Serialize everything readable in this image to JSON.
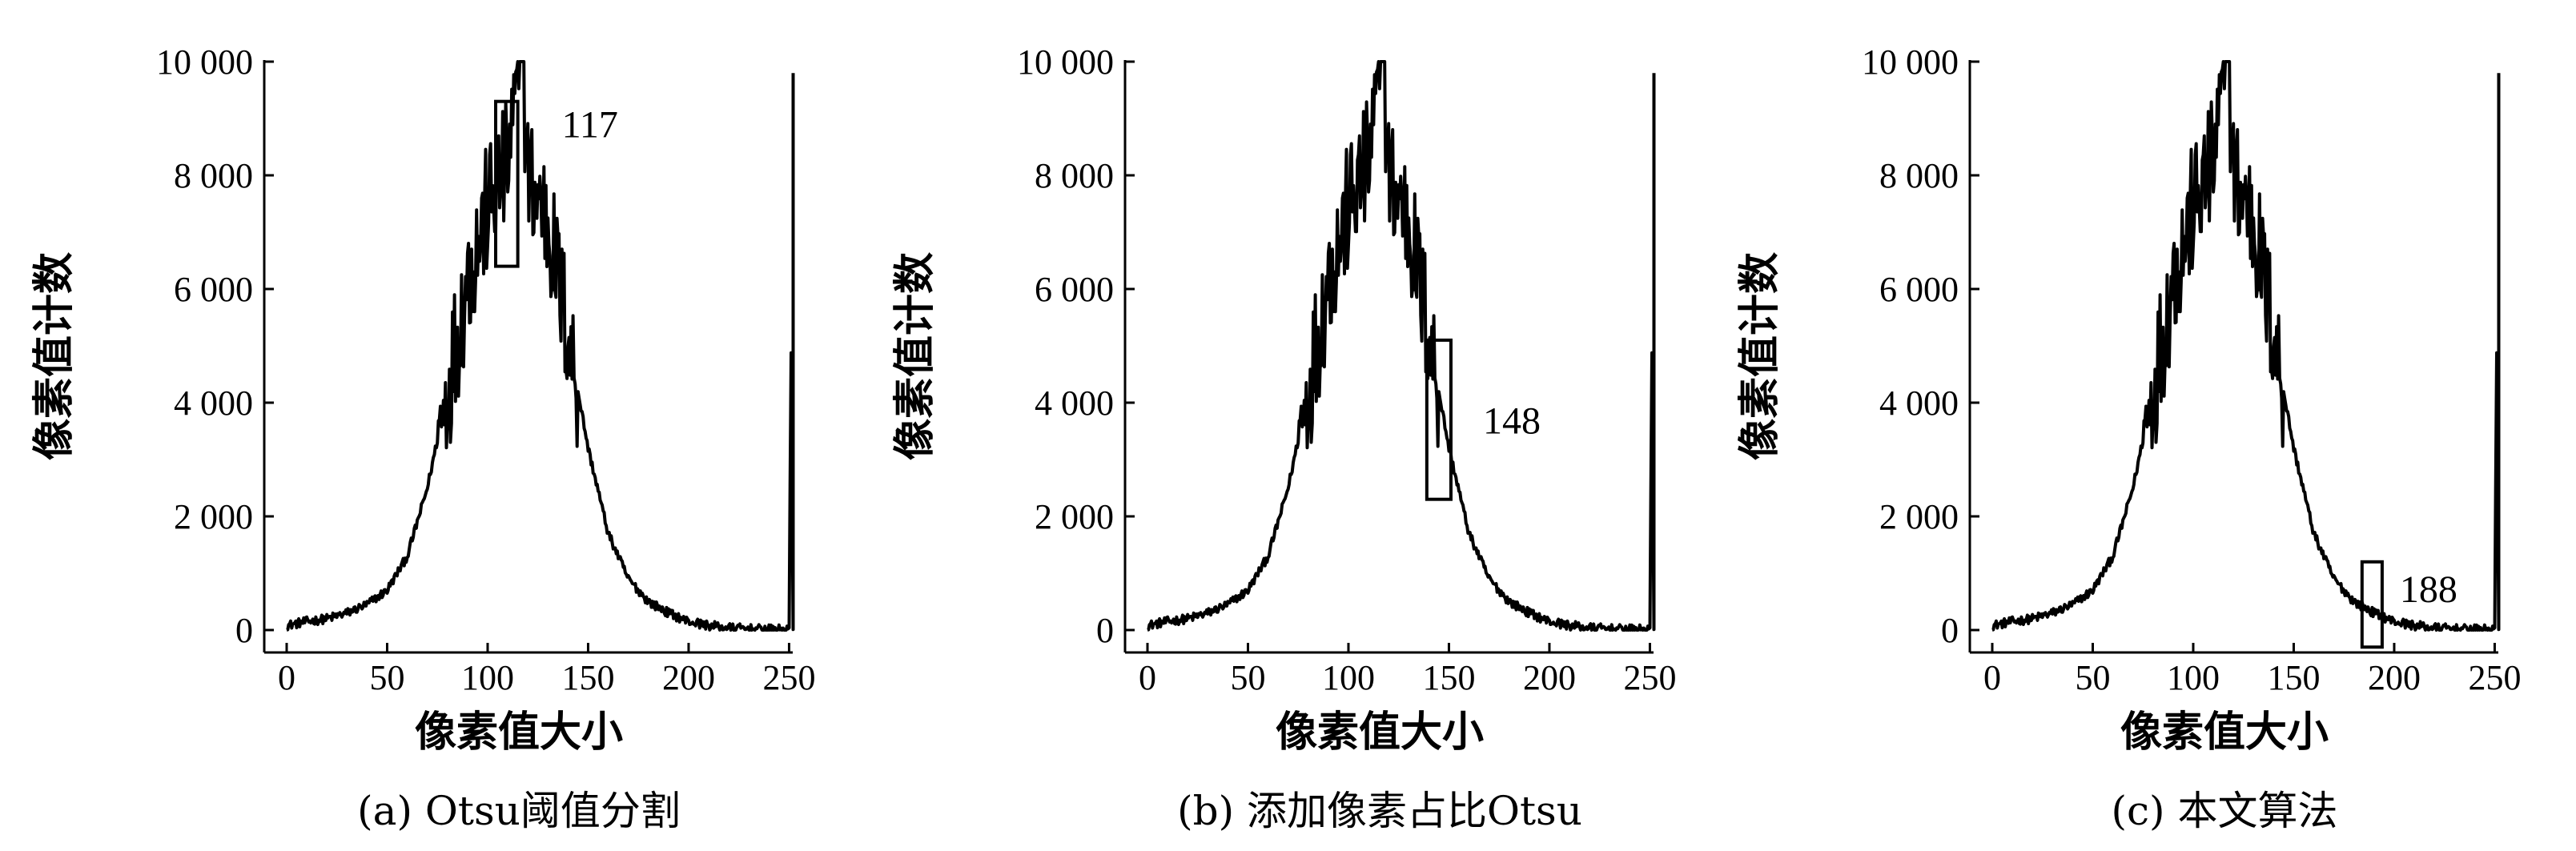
{
  "chart_data": [
    {
      "type": "histogram",
      "caption": "(a) Otsu阈值分割",
      "xlabel": "像素值大小",
      "ylabel": "像素值计数",
      "xlim": [
        0,
        255
      ],
      "ylim": [
        0,
        10000
      ],
      "x_ticks": [
        0,
        50,
        100,
        150,
        200,
        250
      ],
      "x_tick_labels": [
        "0",
        "50",
        "100",
        "150",
        "200",
        "250"
      ],
      "y_ticks": [
        0,
        2000,
        4000,
        6000,
        8000,
        10000
      ],
      "y_tick_labels": [
        "0",
        "2 000",
        "4 000",
        "6 000",
        "8 000",
        "10 000"
      ],
      "threshold": 117,
      "threshold_label": "117",
      "threshold_box": {
        "x_range": [
          104,
          115
        ],
        "y_range": [
          6400,
          9300
        ]
      },
      "x": [
        0,
        10,
        20,
        30,
        40,
        50,
        60,
        70,
        80,
        90,
        100,
        110,
        117,
        120,
        130,
        140,
        150,
        160,
        170,
        180,
        190,
        200,
        210,
        220,
        230,
        240,
        250,
        252,
        253
      ],
      "values": [
        80,
        150,
        200,
        300,
        450,
        700,
        1300,
        2500,
        4200,
        6200,
        7400,
        8200,
        10000,
        8000,
        7200,
        5200,
        3200,
        1700,
        900,
        500,
        300,
        150,
        80,
        40,
        20,
        10,
        10,
        9800,
        9800
      ]
    },
    {
      "type": "histogram",
      "caption": "(b) 添加像素占比Otsu",
      "xlabel": "像素值大小",
      "ylabel": "像素值计数",
      "xlim": [
        0,
        255
      ],
      "ylim": [
        0,
        10000
      ],
      "x_ticks": [
        0,
        50,
        100,
        150,
        200,
        250
      ],
      "x_tick_labels": [
        "0",
        "50",
        "100",
        "150",
        "200",
        "250"
      ],
      "y_ticks": [
        0,
        2000,
        4000,
        6000,
        8000,
        10000
      ],
      "y_tick_labels": [
        "0",
        "2 000",
        "4 000",
        "6 000",
        "8 000",
        "10 000"
      ],
      "threshold": 148,
      "threshold_label": "148",
      "threshold_box": {
        "x_range": [
          139,
          151
        ],
        "y_range": [
          2300,
          5100
        ]
      },
      "x": [
        0,
        10,
        20,
        30,
        40,
        50,
        60,
        70,
        80,
        90,
        100,
        110,
        117,
        120,
        130,
        140,
        150,
        160,
        170,
        180,
        190,
        200,
        210,
        220,
        230,
        240,
        250,
        252,
        253
      ],
      "values": [
        80,
        150,
        200,
        300,
        450,
        700,
        1300,
        2500,
        4200,
        6200,
        7400,
        8200,
        10000,
        8000,
        7200,
        5200,
        3200,
        1700,
        900,
        500,
        300,
        150,
        80,
        40,
        20,
        10,
        10,
        9800,
        9800
      ]
    },
    {
      "type": "histogram",
      "caption": "(c)  本文算法",
      "xlabel": "像素值大小",
      "ylabel": "像素值计数",
      "xlim": [
        0,
        255
      ],
      "ylim": [
        0,
        10000
      ],
      "x_ticks": [
        0,
        50,
        100,
        150,
        200,
        250
      ],
      "x_tick_labels": [
        "0",
        "50",
        "100",
        "150",
        "200",
        "250"
      ],
      "y_ticks": [
        0,
        2000,
        4000,
        6000,
        8000,
        10000
      ],
      "y_tick_labels": [
        "0",
        "2 000",
        "4 000",
        "6 000",
        "8 000",
        "10 000"
      ],
      "threshold": 188,
      "threshold_label": "188",
      "threshold_box": {
        "x_range": [
          184,
          194
        ],
        "y_range": [
          -300,
          1200
        ]
      },
      "x": [
        0,
        10,
        20,
        30,
        40,
        50,
        60,
        70,
        80,
        90,
        100,
        110,
        117,
        120,
        130,
        140,
        150,
        160,
        170,
        180,
        190,
        200,
        210,
        220,
        230,
        240,
        250,
        252,
        253
      ],
      "values": [
        80,
        150,
        200,
        300,
        450,
        700,
        1300,
        2500,
        4200,
        6200,
        7400,
        8200,
        10000,
        8000,
        7200,
        5200,
        3200,
        1700,
        900,
        500,
        300,
        150,
        80,
        40,
        20,
        10,
        10,
        9800,
        9800
      ]
    }
  ]
}
